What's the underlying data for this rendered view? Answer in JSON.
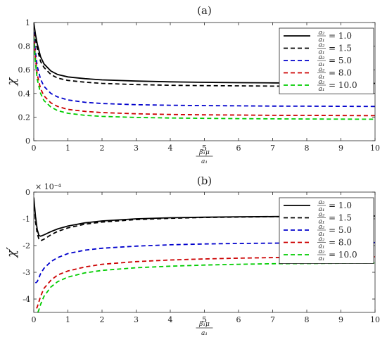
{
  "chart_data": [
    {
      "type": "line",
      "title": "(a)",
      "xlabel": {
        "num": "β₁μ",
        "den": "a₁"
      },
      "ylabel": "χ",
      "xlim": [
        0,
        10
      ],
      "ylim": [
        0,
        1
      ],
      "xticks": [
        0,
        1,
        2,
        3,
        4,
        5,
        6,
        7,
        8,
        9,
        10
      ],
      "yticks": [
        0,
        0.2,
        0.4,
        0.6,
        0.8,
        1
      ],
      "ytick_labels": [
        "0",
        "0.2",
        "0.4",
        "0.6",
        "0.8",
        "1"
      ],
      "legend_position": "top-right",
      "series": [
        {
          "legend_num": "a₂",
          "legend_den": "a₁",
          "legend_value": "= 1.0",
          "color": "#000000",
          "dash": "solid",
          "x": [
            0,
            0.05,
            0.1,
            0.2,
            0.3,
            0.5,
            0.7,
            1,
            1.5,
            2,
            3,
            4,
            5,
            6,
            7,
            8,
            9,
            10
          ],
          "y": [
            1.0,
            0.9,
            0.82,
            0.71,
            0.65,
            0.59,
            0.56,
            0.54,
            0.525,
            0.515,
            0.505,
            0.498,
            0.494,
            0.491,
            0.489,
            0.487,
            0.486,
            0.485
          ]
        },
        {
          "legend_num": "a₂",
          "legend_den": "a₁",
          "legend_value": "= 1.5",
          "color": "#000000",
          "dash": "dashed",
          "x": [
            0,
            0.05,
            0.1,
            0.2,
            0.3,
            0.5,
            0.7,
            1,
            1.5,
            2,
            3,
            4,
            5,
            6,
            7,
            8,
            9,
            10
          ],
          "y": [
            0.98,
            0.86,
            0.78,
            0.67,
            0.62,
            0.56,
            0.53,
            0.51,
            0.495,
            0.485,
            0.475,
            0.469,
            0.466,
            0.464,
            0.462,
            0.461,
            0.46,
            0.459
          ]
        },
        {
          "legend_num": "a₂",
          "legend_den": "a₁",
          "legend_value": "= 5.0",
          "color": "#0000cc",
          "dash": "dashed",
          "x": [
            0,
            0.05,
            0.1,
            0.2,
            0.3,
            0.5,
            0.7,
            1,
            1.5,
            2,
            3,
            4,
            5,
            6,
            7,
            8,
            9,
            10
          ],
          "y": [
            0.92,
            0.75,
            0.63,
            0.52,
            0.46,
            0.4,
            0.37,
            0.345,
            0.325,
            0.315,
            0.305,
            0.3,
            0.297,
            0.295,
            0.293,
            0.292,
            0.291,
            0.29
          ]
        },
        {
          "legend_num": "a₂",
          "legend_den": "a₁",
          "legend_value": "= 8.0",
          "color": "#cc0000",
          "dash": "dashed",
          "x": [
            0,
            0.05,
            0.1,
            0.2,
            0.3,
            0.5,
            0.7,
            1,
            1.5,
            2,
            3,
            4,
            5,
            6,
            7,
            8,
            9,
            10
          ],
          "y": [
            0.9,
            0.7,
            0.56,
            0.44,
            0.38,
            0.32,
            0.29,
            0.265,
            0.248,
            0.238,
            0.228,
            0.222,
            0.219,
            0.217,
            0.215,
            0.214,
            0.213,
            0.212
          ]
        },
        {
          "legend_num": "a₂",
          "legend_den": "a₁",
          "legend_value": "= 10.0",
          "color": "#00cc00",
          "dash": "dashed",
          "x": [
            0,
            0.05,
            0.1,
            0.2,
            0.3,
            0.5,
            0.7,
            1,
            1.5,
            2,
            3,
            4,
            5,
            6,
            7,
            8,
            9,
            10
          ],
          "y": [
            0.88,
            0.66,
            0.52,
            0.4,
            0.34,
            0.285,
            0.255,
            0.232,
            0.215,
            0.206,
            0.197,
            0.192,
            0.189,
            0.187,
            0.185,
            0.184,
            0.183,
            0.182
          ]
        }
      ]
    },
    {
      "type": "line",
      "title": "(b)",
      "xlabel": {
        "num": "β₁μ",
        "den": "a₁"
      },
      "ylabel": "χ′",
      "scale_label": "× 10⁻⁴",
      "xlim": [
        0,
        10
      ],
      "ylim": [
        -4.5,
        0
      ],
      "xticks": [
        0,
        1,
        2,
        3,
        4,
        5,
        6,
        7,
        8,
        9,
        10
      ],
      "yticks": [
        0,
        -1,
        -2,
        -3,
        -4
      ],
      "ytick_labels": [
        "0",
        "-1",
        "-2",
        "-3",
        "-4"
      ],
      "legend_position": "top-right",
      "series": [
        {
          "legend_num": "a₂",
          "legend_den": "a₁",
          "legend_value": "= 1.0",
          "color": "#000000",
          "dash": "solid",
          "x": [
            0,
            0.05,
            0.1,
            0.15,
            0.2,
            0.3,
            0.5,
            0.7,
            1,
            1.5,
            2,
            3,
            4,
            5,
            6,
            7,
            8,
            9,
            10
          ],
          "y": [
            -0.2,
            -0.9,
            -1.4,
            -1.62,
            -1.65,
            -1.6,
            -1.48,
            -1.38,
            -1.27,
            -1.15,
            -1.08,
            -1.0,
            -0.96,
            -0.94,
            -0.925,
            -0.915,
            -0.905,
            -0.9,
            -0.895
          ]
        },
        {
          "legend_num": "a₂",
          "legend_den": "a₁",
          "legend_value": "= 1.5",
          "color": "#000000",
          "dash": "dashed",
          "x": [
            0,
            0.05,
            0.1,
            0.15,
            0.2,
            0.3,
            0.5,
            0.7,
            1,
            1.5,
            2,
            3,
            4,
            5,
            6,
            7,
            8,
            9,
            10
          ],
          "y": [
            -0.3,
            -1.1,
            -1.55,
            -1.75,
            -1.82,
            -1.76,
            -1.6,
            -1.47,
            -1.34,
            -1.2,
            -1.12,
            -1.03,
            -0.98,
            -0.95,
            -0.935,
            -0.92,
            -0.91,
            -0.905,
            -0.9
          ]
        },
        {
          "legend_num": "a₂",
          "legend_den": "a₁",
          "legend_value": "= 5.0",
          "color": "#0000cc",
          "dash": "dashed",
          "x": [
            0.05,
            0.1,
            0.15,
            0.2,
            0.3,
            0.5,
            0.7,
            1,
            1.5,
            2,
            3,
            4,
            5,
            6,
            7,
            8,
            9,
            10
          ],
          "y": [
            -3.4,
            -3.35,
            -3.2,
            -3.05,
            -2.85,
            -2.6,
            -2.45,
            -2.3,
            -2.17,
            -2.1,
            -2.02,
            -1.97,
            -1.94,
            -1.92,
            -1.91,
            -1.9,
            -1.895,
            -1.89
          ]
        },
        {
          "legend_num": "a₂",
          "legend_den": "a₁",
          "legend_value": "= 8.0",
          "color": "#cc0000",
          "dash": "dashed",
          "x": [
            0.08,
            0.1,
            0.15,
            0.2,
            0.3,
            0.5,
            0.7,
            1,
            1.5,
            2,
            3,
            4,
            5,
            6,
            7,
            8,
            9,
            10
          ],
          "y": [
            -4.35,
            -4.3,
            -4.1,
            -3.9,
            -3.6,
            -3.3,
            -3.1,
            -2.95,
            -2.8,
            -2.7,
            -2.6,
            -2.54,
            -2.5,
            -2.47,
            -2.45,
            -2.44,
            -2.43,
            -2.42
          ]
        },
        {
          "legend_num": "a₂",
          "legend_den": "a₁",
          "legend_value": "= 10.0",
          "color": "#00cc00",
          "dash": "dashed",
          "x": [
            0.12,
            0.15,
            0.2,
            0.3,
            0.5,
            0.7,
            1,
            1.5,
            2,
            3,
            4,
            5,
            6,
            7,
            8,
            9,
            10
          ],
          "y": [
            -4.5,
            -4.4,
            -4.2,
            -3.9,
            -3.55,
            -3.35,
            -3.18,
            -3.02,
            -2.93,
            -2.83,
            -2.77,
            -2.73,
            -2.7,
            -2.68,
            -2.67,
            -2.66,
            -2.65
          ]
        }
      ]
    }
  ]
}
